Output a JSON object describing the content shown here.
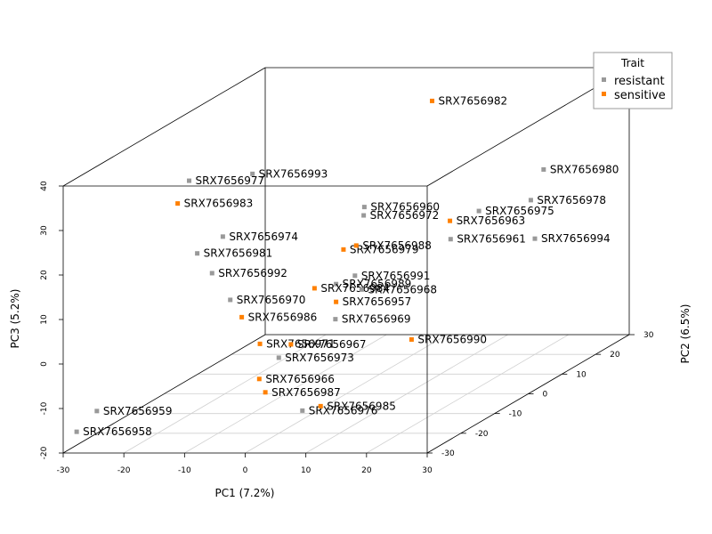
{
  "chart_data": {
    "type": "scatter",
    "projection": "3d",
    "xlabel": "PC1 (7.2%)",
    "ylabel": "PC2 (6.5%)",
    "zlabel": "PC3 (5.2%)",
    "xlim": [
      -30,
      30
    ],
    "ylim": [
      -30,
      30
    ],
    "zlim": [
      -20,
      40
    ],
    "x_ticks": [
      -30,
      -20,
      -10,
      0,
      10,
      20,
      30
    ],
    "y_ticks": [
      -30,
      -20,
      -10,
      0,
      10,
      20,
      30
    ],
    "z_ticks": [
      -20,
      -10,
      0,
      10,
      20,
      30,
      40
    ],
    "grid": true,
    "legend": {
      "title": "Trait",
      "position": "top-right",
      "entries": [
        {
          "name": "resistant",
          "color": "#999999"
        },
        {
          "name": "sensitive",
          "color": "#ff8000"
        }
      ]
    },
    "points": [
      {
        "label": "SRX7656982",
        "trait": "sensitive",
        "x": 7.5,
        "y": 12.0,
        "z": 40.5
      },
      {
        "label": "SRX7656980",
        "trait": "resistant",
        "x": 17.0,
        "y": 28.0,
        "z": 18.0
      },
      {
        "label": "SRX7656978",
        "trait": "resistant",
        "x": 16.0,
        "y": 26.0,
        "z": 12.0
      },
      {
        "label": "SRX7656994",
        "trait": "resistant",
        "x": 20.0,
        "y": 20.0,
        "z": 6.0
      },
      {
        "label": "SRX7656975",
        "trait": "resistant",
        "x": 8.0,
        "y": 25.0,
        "z": 10.0
      },
      {
        "label": "SRX7656977",
        "trait": "resistant",
        "x": -27.0,
        "y": 2.0,
        "z": 27.0
      },
      {
        "label": "SRX7656993",
        "trait": "resistant",
        "x": -21.0,
        "y": 10.0,
        "z": 25.0
      },
      {
        "label": "SRX7656983",
        "trait": "sensitive",
        "x": -30.0,
        "y": 4.0,
        "z": 21.0
      },
      {
        "label": "SRX7656960",
        "trait": "resistant",
        "x": -7.0,
        "y": 18.0,
        "z": 14.0
      },
      {
        "label": "SRX7656972",
        "trait": "resistant",
        "x": -6.0,
        "y": 16.0,
        "z": 13.0
      },
      {
        "label": "SRX7656963",
        "trait": "sensitive",
        "x": 6.0,
        "y": 20.0,
        "z": 10.0
      },
      {
        "label": "SRX7656974",
        "trait": "resistant",
        "x": -22.0,
        "y": 3.0,
        "z": 14.0
      },
      {
        "label": "SRX7656981",
        "trait": "resistant",
        "x": -24.0,
        "y": -1.0,
        "z": 12.0
      },
      {
        "label": "SRX7656979",
        "trait": "sensitive",
        "x": -6.0,
        "y": 10.0,
        "z": 8.0
      },
      {
        "label": "SRX7656988",
        "trait": "sensitive",
        "x": -5.0,
        "y": 12.0,
        "z": 8.0
      },
      {
        "label": "SRX7656992",
        "trait": "resistant",
        "x": -21.0,
        "y": -2.0,
        "z": 8.0
      },
      {
        "label": "SRX7656961",
        "trait": "resistant",
        "x": 5.0,
        "y": 22.0,
        "z": 5.0
      },
      {
        "label": "SRX7656991",
        "trait": "resistant",
        "x": -3.0,
        "y": 8.0,
        "z": 3.0
      },
      {
        "label": "SRX7656989",
        "trait": "resistant",
        "x": -5.0,
        "y": 6.0,
        "z": 2.0
      },
      {
        "label": "SRX7656984",
        "trait": "sensitive",
        "x": -8.0,
        "y": 5.0,
        "z": 1.5
      },
      {
        "label": "SRX7656970",
        "trait": "resistant",
        "x": -18.0,
        "y": -2.0,
        "z": 2.0
      },
      {
        "label": "SRX7656986",
        "trait": "sensitive",
        "x": -15.0,
        "y": -4.0,
        "z": -1.0
      },
      {
        "label": "SRX7656968",
        "trait": "resistant",
        "x": -3.0,
        "y": 10.0,
        "z": -1.0
      },
      {
        "label": "SRX7656957",
        "trait": "sensitive",
        "x": -5.0,
        "y": 6.0,
        "z": -2.0
      },
      {
        "label": "SRX7656990",
        "trait": "sensitive",
        "x": 3.0,
        "y": 14.0,
        "z": -14.0
      },
      {
        "label": "SRX7656969",
        "trait": "resistant",
        "x": -4.0,
        "y": 4.0,
        "z": -5.0
      },
      {
        "label": "SRX7656971",
        "trait": "sensitive",
        "x": -12.0,
        "y": -4.0,
        "z": -7.0
      },
      {
        "label": "SRX7656967",
        "trait": "sensitive",
        "x": -8.0,
        "y": -2.0,
        "z": -8.0
      },
      {
        "label": "SRX7656973",
        "trait": "resistant",
        "x": -10.0,
        "y": -2.0,
        "z": -11.0
      },
      {
        "label": "SRX7656959",
        "trait": "resistant",
        "x": -30.0,
        "y": -20.0,
        "z": -15.0
      },
      {
        "label": "SRX7656966",
        "trait": "sensitive",
        "x": -11.0,
        "y": -6.0,
        "z": -14.0
      },
      {
        "label": "SRX7656987",
        "trait": "sensitive",
        "x": -10.0,
        "y": -6.0,
        "z": -17.0
      },
      {
        "label": "SRX7656976",
        "trait": "resistant",
        "x": -5.0,
        "y": -4.0,
        "z": -22.0
      },
      {
        "label": "SRX7656985",
        "trait": "sensitive",
        "x": -2.0,
        "y": -4.0,
        "z": -21.0
      },
      {
        "label": "SRX7656958",
        "trait": "resistant",
        "x": -30.0,
        "y": -26.0,
        "z": -17.0
      }
    ]
  }
}
